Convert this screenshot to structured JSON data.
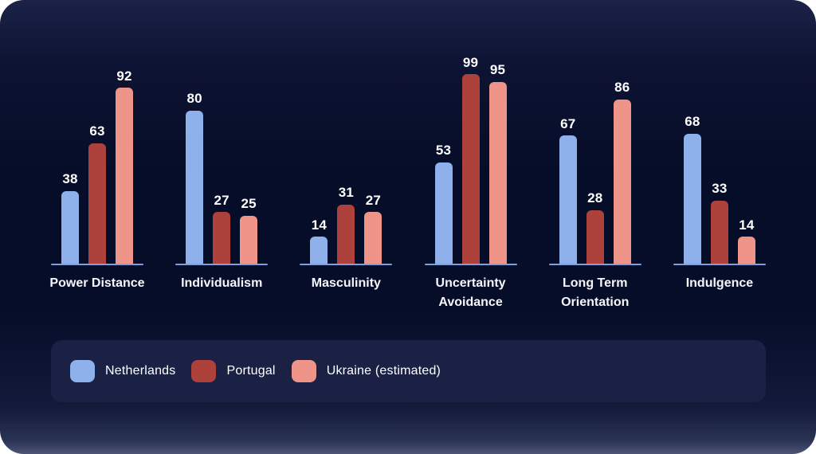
{
  "chart_data": {
    "type": "bar",
    "title": "",
    "xlabel": "",
    "ylabel": "",
    "ylim": [
      0,
      100
    ],
    "grid": false,
    "legend_position": "bottom",
    "value_labels": true,
    "categories": [
      "Power Distance",
      "Individualism",
      "Masculinity",
      "Uncertainty Avoidance",
      "Long Term Orientation",
      "Indulgence"
    ],
    "series": [
      {
        "name": "Netherlands",
        "color": "#8eb1ec",
        "values": [
          38,
          80,
          14,
          53,
          67,
          68
        ]
      },
      {
        "name": "Portugal",
        "color": "#ad413c",
        "values": [
          63,
          27,
          31,
          99,
          28,
          33
        ]
      },
      {
        "name": "Ukraine (estimated)",
        "color": "#ee9488",
        "values": [
          92,
          25,
          27,
          95,
          86,
          14
        ]
      }
    ]
  },
  "colors": {
    "panel_background_top": "#1c2247",
    "panel_background_mid": "#060d28",
    "panel_background_bottom": "#4d5474",
    "baseline": "#7da1dd",
    "legend_background": "#1b2144",
    "text": "#ffffff"
  }
}
